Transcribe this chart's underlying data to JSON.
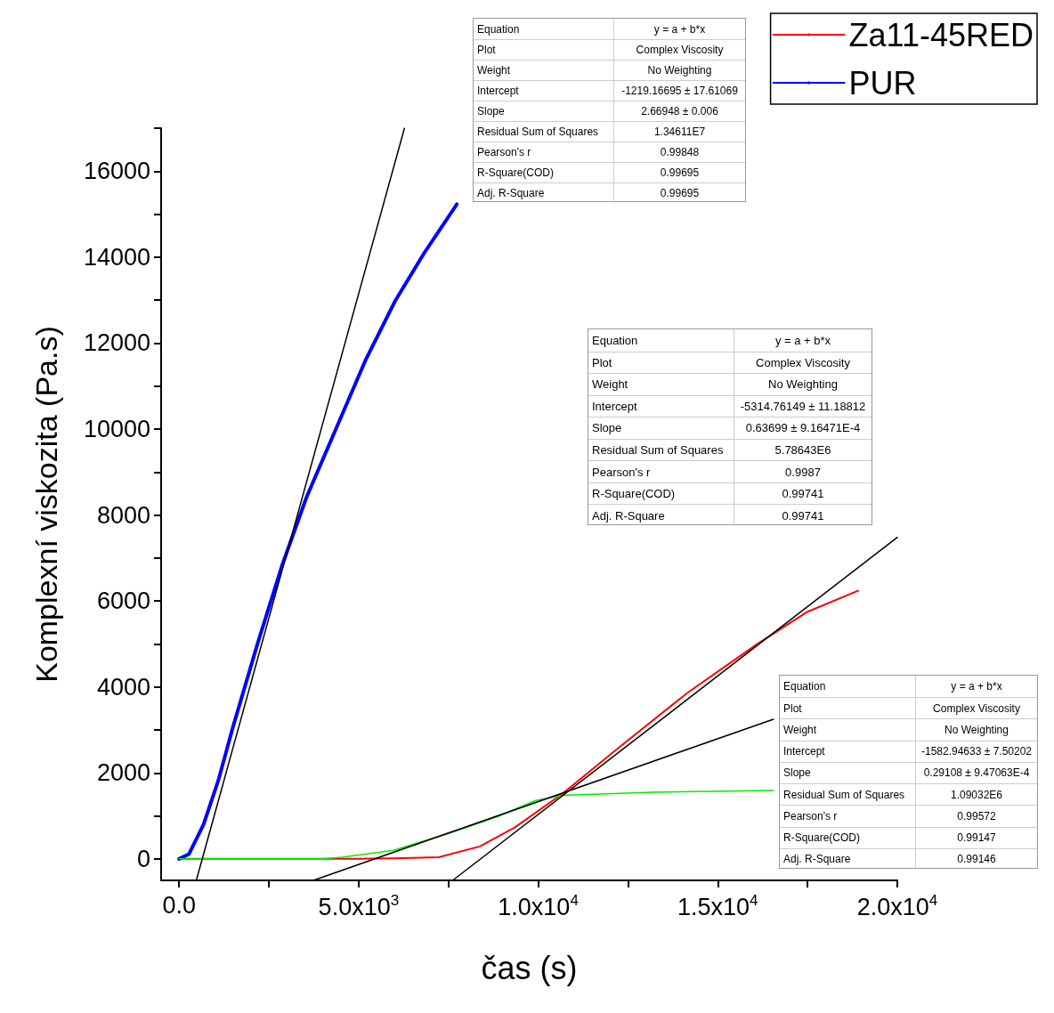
{
  "chart_data": {
    "type": "line",
    "xlabel": "čas (s)",
    "ylabel": "Komplexní viskozita (Pa.s)",
    "xlim": [
      -500,
      20000
    ],
    "ylim": [
      -500,
      17000
    ],
    "xticks": [
      {
        "value": 0,
        "label": "0.0"
      },
      {
        "value": 2500,
        "label": null
      },
      {
        "value": 5000,
        "label": "5.0x10$^{3}$"
      },
      {
        "value": 7500,
        "label": null
      },
      {
        "value": 10000,
        "label": "1.0x10$^{4}$"
      },
      {
        "value": 12500,
        "label": null
      },
      {
        "value": 15000,
        "label": "1.5x10$^{4}$"
      },
      {
        "value": 17500,
        "label": null
      },
      {
        "value": 20000,
        "label": "2.0x10$^{4}$"
      }
    ],
    "yticks": [
      0,
      {
        "value": 1000,
        "label": null
      },
      2000,
      {
        "value": 3000,
        "label": null
      },
      4000,
      {
        "value": 5000,
        "label": null
      },
      6000,
      {
        "value": 7000,
        "label": null
      },
      8000,
      {
        "value": 9000,
        "label": null
      },
      10000,
      {
        "value": 11000,
        "label": null
      },
      12000,
      {
        "value": 13000,
        "label": null
      },
      14000,
      {
        "value": 15000,
        "label": null
      },
      16000,
      {
        "value": 17000,
        "label": null
      }
    ],
    "grid": false,
    "legend": "top right",
    "marker": "none",
    "line_style": "solid",
    "series": [
      {
        "name": "Za11-45RED",
        "color": "#ff0000",
        "x": [
          0,
          2000,
          4000,
          5000,
          6000,
          7233,
          8374,
          9345,
          10680,
          12233,
          14150,
          16068,
          17500,
          18908
        ],
        "values": [
          0,
          0,
          0,
          0,
          10,
          40,
          290,
          730,
          1520,
          2580,
          3860,
          4980,
          5750,
          6240
        ]
      },
      {
        "name": "PUR",
        "color": "#0000ff",
        "x": [
          0,
          273,
          682,
          1091,
          1501,
          2183,
          2865,
          3547,
          4366,
          5185,
          6003,
          6821,
          7735
        ],
        "values": [
          0,
          110,
          800,
          1820,
          3070,
          5000,
          6820,
          8410,
          10000,
          11590,
          12960,
          14090,
          15230
        ]
      },
      {
        "color": "#00ee00",
        "x": [
          0,
          2000,
          4000,
          4539,
          5971,
          7427,
          8859,
          9927,
          10680,
          13180,
          16553
        ],
        "values": [
          0,
          0,
          0,
          40,
          200,
          570,
          980,
          1360,
          1480,
          1550,
          1590
        ]
      },
      {
        "type": "line",
        "color": "#000000",
        "x": [
          480,
          6276
        ],
        "values": [
          -500,
          17000
        ]
      },
      {
        "type": "line",
        "color": "#000000",
        "x": [
          7620,
          20000
        ],
        "values": [
          -500,
          7480
        ]
      },
      {
        "type": "line",
        "color": "#000000",
        "x": [
          3740,
          16550
        ],
        "values": [
          -500,
          3250
        ]
      }
    ],
    "annotations": [
      "Equation",
      "y = a + b*x",
      "Plot",
      "Complex Viscosity",
      "Weight",
      "No Weighting",
      "Intercept",
      "-1219.16695 ± 17.61069",
      "Slope",
      "2.66948 ± 0.006",
      "Residual Sum of Squares",
      "1.34611E7",
      "Pearson's r",
      "0.99848",
      "R-Square(COD)",
      "0.99695",
      "Adj. R-Square",
      "0.99695",
      "Equation",
      "y = a + b*x",
      "Plot",
      "Complex Viscosity",
      "Weight",
      "No Weighting",
      "Intercept",
      "-5314.76149 ± 11.18812",
      "Slope",
      "0.63699 ± 9.16471E-4",
      "Residual Sum of Squares",
      "5.78643E6",
      "Pearson's r",
      "0.9987",
      "R-Square(COD)",
      "0.99741",
      "Adj. R-Square",
      "0.99741",
      "Equation",
      "y = a + b*x",
      "Plot",
      "Complex Viscosity",
      "Weight",
      "No Weighting",
      "Intercept",
      "-1582.94633 ± 7.50202",
      "Slope",
      "0.29108 ± 9.47063E-4",
      "Residual Sum of Squares",
      "1.09032E6",
      "Pearson's r",
      "0.99572",
      "R-Square(COD)",
      "0.99147",
      "Adj. R-Square",
      "0.99146"
    ]
  }
}
